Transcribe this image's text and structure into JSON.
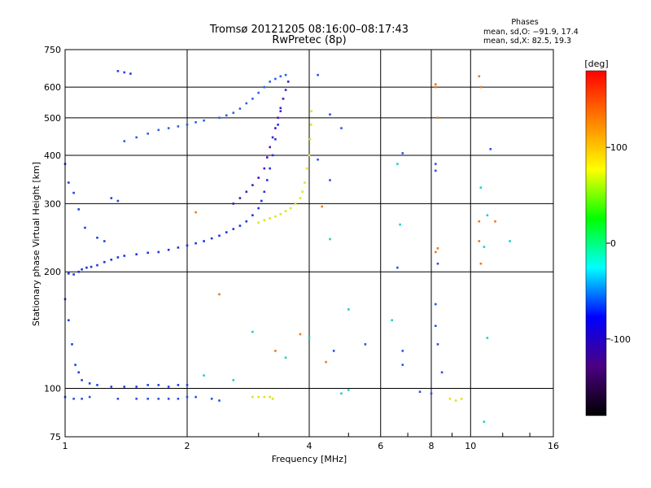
{
  "chart_data": {
    "type": "scatter",
    "title": "Tromsø 20121205 08:16:00–08:17:43",
    "subtitle": "RwPretec (8p)",
    "xlabel": "Frequency [MHz]",
    "ylabel": "Stationary phase Virtual Height [km]",
    "xscale": "log",
    "yscale": "log",
    "xlim": [
      1,
      16
    ],
    "ylim": [
      75,
      750
    ],
    "xticks": [
      1,
      2,
      4,
      6,
      8,
      10,
      16
    ],
    "yticks": [
      75,
      100,
      200,
      300,
      400,
      500,
      600,
      750
    ],
    "grid": true,
    "phases_box": {
      "title": "Phases",
      "line1": "mean, sd,O: −91.9, 17.4",
      "line2": "mean, sd,X: 82.5, 19.3"
    },
    "colorbar": {
      "label": "[deg]",
      "range": [
        -180,
        180
      ],
      "ticks": [
        100,
        0,
        -100
      ],
      "colors": [
        "#000000",
        "#4b0082",
        "#0000ff",
        "#00ffff",
        "#00ff00",
        "#ffff00",
        "#ff8000",
        "#ff0000"
      ]
    },
    "series": [
      {
        "role": "O-mode F-trace",
        "color": "#1a33e6",
        "points": [
          [
            1.02,
            198
          ],
          [
            1.05,
            197
          ],
          [
            1.08,
            200
          ],
          [
            1.1,
            203
          ],
          [
            1.13,
            205
          ],
          [
            1.16,
            206
          ],
          [
            1.2,
            208
          ],
          [
            1.25,
            212
          ],
          [
            1.3,
            215
          ],
          [
            1.35,
            218
          ],
          [
            1.4,
            220
          ],
          [
            1.5,
            222
          ],
          [
            1.6,
            224
          ],
          [
            1.7,
            225
          ],
          [
            1.8,
            228
          ],
          [
            1.9,
            231
          ],
          [
            2.0,
            234
          ],
          [
            2.1,
            237
          ],
          [
            2.2,
            240
          ],
          [
            2.3,
            244
          ],
          [
            2.4,
            248
          ],
          [
            2.5,
            253
          ],
          [
            2.6,
            258
          ],
          [
            2.7,
            263
          ],
          [
            2.8,
            270
          ],
          [
            2.9,
            280
          ],
          [
            3.0,
            292
          ],
          [
            3.05,
            305
          ],
          [
            3.1,
            322
          ],
          [
            3.15,
            345
          ],
          [
            3.2,
            370
          ],
          [
            3.25,
            400
          ],
          [
            3.3,
            440
          ],
          [
            3.35,
            480
          ],
          [
            3.4,
            520
          ]
        ]
      },
      {
        "role": "O-mode upper trace",
        "color": "#2a60e8",
        "points": [
          [
            1.4,
            435
          ],
          [
            1.5,
            445
          ],
          [
            1.6,
            455
          ],
          [
            1.7,
            465
          ],
          [
            1.8,
            470
          ],
          [
            1.9,
            475
          ],
          [
            2.0,
            480
          ],
          [
            2.1,
            487
          ],
          [
            2.2,
            492
          ],
          [
            2.4,
            500
          ],
          [
            2.5,
            507
          ],
          [
            2.6,
            515
          ],
          [
            2.7,
            528
          ],
          [
            2.8,
            545
          ],
          [
            2.9,
            560
          ],
          [
            3.0,
            580
          ],
          [
            3.1,
            600
          ],
          [
            3.2,
            620
          ],
          [
            3.3,
            630
          ],
          [
            3.4,
            640
          ],
          [
            3.5,
            645
          ]
        ]
      },
      {
        "role": "O-mode second branch",
        "color": "#4b12c8",
        "points": [
          [
            2.6,
            300
          ],
          [
            2.7,
            310
          ],
          [
            2.8,
            322
          ],
          [
            2.9,
            335
          ],
          [
            3.0,
            350
          ],
          [
            3.1,
            370
          ],
          [
            3.15,
            395
          ],
          [
            3.2,
            420
          ],
          [
            3.25,
            445
          ],
          [
            3.3,
            470
          ],
          [
            3.35,
            500
          ],
          [
            3.4,
            530
          ],
          [
            3.45,
            560
          ],
          [
            3.5,
            590
          ],
          [
            3.55,
            620
          ]
        ]
      },
      {
        "role": "X-mode trace",
        "color": "#d8e628",
        "points": [
          [
            3.0,
            268
          ],
          [
            3.1,
            272
          ],
          [
            3.2,
            275
          ],
          [
            3.3,
            278
          ],
          [
            3.4,
            282
          ],
          [
            3.5,
            287
          ],
          [
            3.6,
            292
          ],
          [
            3.7,
            300
          ],
          [
            3.8,
            310
          ],
          [
            3.85,
            322
          ],
          [
            3.9,
            340
          ],
          [
            3.95,
            370
          ],
          [
            4.0,
            400
          ],
          [
            4.02,
            440
          ],
          [
            4.04,
            480
          ],
          [
            4.05,
            520
          ]
        ]
      },
      {
        "role": "E-layer echoes",
        "color": "#2a50e0",
        "points": [
          [
            1.0,
            95
          ],
          [
            1.05,
            94
          ],
          [
            1.1,
            94
          ],
          [
            1.15,
            95
          ],
          [
            1.35,
            94
          ],
          [
            1.5,
            94
          ],
          [
            1.6,
            94
          ],
          [
            1.7,
            94
          ],
          [
            1.8,
            94
          ],
          [
            1.9,
            94
          ],
          [
            2.0,
            95
          ],
          [
            2.1,
            95
          ],
          [
            2.3,
            94
          ],
          [
            2.4,
            93
          ]
        ]
      },
      {
        "role": "E-layer X echoes",
        "color": "#e0e020",
        "points": [
          [
            2.9,
            95
          ],
          [
            3.0,
            95
          ],
          [
            3.1,
            95
          ],
          [
            3.2,
            95
          ],
          [
            3.25,
            94
          ],
          [
            8.9,
            94
          ],
          [
            9.2,
            93
          ],
          [
            9.5,
            94
          ]
        ]
      },
      {
        "role": "low-frequency spread",
        "color": "#2040e0",
        "points": [
          [
            1.0,
            380
          ],
          [
            1.02,
            340
          ],
          [
            1.05,
            320
          ],
          [
            1.08,
            290
          ],
          [
            1.12,
            260
          ],
          [
            1.2,
            245
          ],
          [
            1.25,
            240
          ],
          [
            1.3,
            310
          ],
          [
            1.35,
            305
          ],
          [
            1.0,
            170
          ],
          [
            1.02,
            150
          ],
          [
            1.04,
            130
          ],
          [
            1.06,
            115
          ],
          [
            1.08,
            110
          ],
          [
            1.1,
            105
          ],
          [
            1.15,
            103
          ],
          [
            1.2,
            102
          ],
          [
            1.3,
            101
          ],
          [
            1.4,
            101
          ],
          [
            1.5,
            101
          ],
          [
            1.6,
            102
          ],
          [
            1.7,
            102
          ],
          [
            1.8,
            101
          ],
          [
            1.9,
            102
          ],
          [
            2.0,
            102
          ],
          [
            1.35,
            660
          ],
          [
            1.4,
            655
          ],
          [
            1.45,
            650
          ]
        ]
      },
      {
        "role": "scattered echoes",
        "color": "#3050e8",
        "points": [
          [
            4.2,
            645
          ],
          [
            4.5,
            510
          ],
          [
            4.8,
            470
          ],
          [
            4.2,
            390
          ],
          [
            4.5,
            345
          ],
          [
            6.8,
            405
          ],
          [
            8.2,
            380
          ],
          [
            8.2,
            365
          ],
          [
            11.2,
            415
          ],
          [
            8.3,
            210
          ],
          [
            6.6,
            205
          ],
          [
            8.2,
            165
          ],
          [
            8.2,
            145
          ],
          [
            8.3,
            130
          ],
          [
            8.5,
            110
          ],
          [
            6.8,
            125
          ],
          [
            6.8,
            115
          ],
          [
            4.6,
            125
          ],
          [
            5.5,
            130
          ],
          [
            7.5,
            98
          ],
          [
            8.0,
            97
          ]
        ]
      },
      {
        "role": "scattered echoes warm",
        "color": "#e87a20",
        "points": [
          [
            8.2,
            610
          ],
          [
            8.2,
            600
          ],
          [
            8.3,
            500
          ],
          [
            10.5,
            640
          ],
          [
            10.6,
            600
          ],
          [
            10.5,
            270
          ],
          [
            11.5,
            270
          ],
          [
            10.5,
            240
          ],
          [
            10.6,
            210
          ],
          [
            8.3,
            230
          ],
          [
            8.2,
            225
          ],
          [
            4.3,
            295
          ],
          [
            4.4,
            117
          ],
          [
            3.3,
            125
          ],
          [
            3.8,
            138
          ],
          [
            2.4,
            175
          ],
          [
            2.1,
            285
          ]
        ]
      },
      {
        "role": "scattered echoes green-cyan",
        "color": "#20d0c0",
        "points": [
          [
            4.5,
            243
          ],
          [
            6.7,
            265
          ],
          [
            6.6,
            380
          ],
          [
            10.6,
            330
          ],
          [
            11.0,
            280
          ],
          [
            10.8,
            232
          ],
          [
            5.0,
            160
          ],
          [
            6.4,
            150
          ],
          [
            11.0,
            135
          ],
          [
            4.8,
            97
          ],
          [
            5.0,
            99
          ],
          [
            2.6,
            105
          ],
          [
            2.2,
            108
          ],
          [
            2.9,
            140
          ],
          [
            3.5,
            120
          ],
          [
            4.0,
            135
          ],
          [
            10.8,
            82
          ],
          [
            12.5,
            240
          ]
        ]
      }
    ]
  }
}
